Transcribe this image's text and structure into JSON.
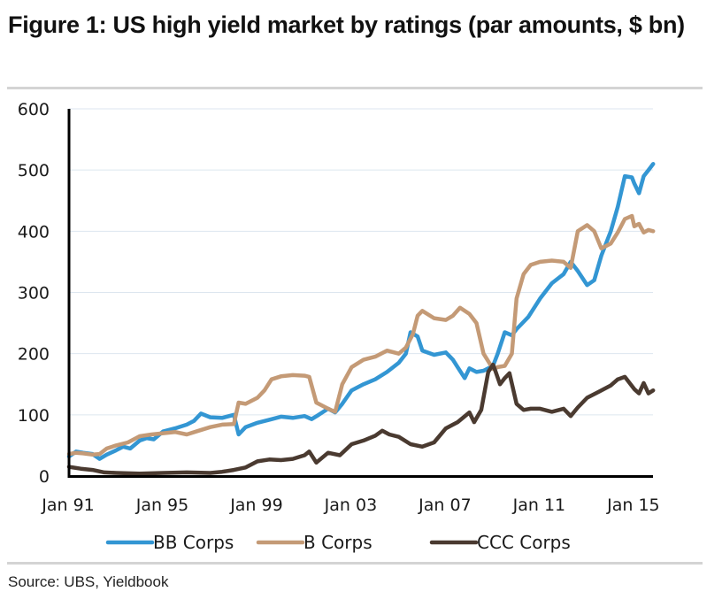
{
  "title": "Figure 1: US high yield market by ratings (par amounts, $ bn)",
  "source": "Source:  UBS, Yieldbook",
  "chart_data": {
    "type": "line",
    "title": "Figure 1: US high yield market by ratings (par amounts, $ bn)",
    "xlabel": "",
    "ylabel": "",
    "ylim": [
      0,
      600
    ],
    "xlim": [
      1991.0,
      2015.8
    ],
    "yticks": [
      0,
      100,
      200,
      300,
      400,
      500,
      600
    ],
    "ytick_labels": [
      "0",
      "100",
      "200",
      "300",
      "400",
      "500",
      "600"
    ],
    "xticks": [
      1991,
      1995,
      1999,
      2003,
      2007,
      2011,
      2015
    ],
    "xtick_labels": [
      "Jan 91",
      "Jan 95",
      "Jan 99",
      "Jan 03",
      "Jan 07",
      "Jan 11",
      "Jan 15"
    ],
    "grid": "horizontal",
    "legend_position": "bottom",
    "series": [
      {
        "name": "BB Corps",
        "color": "#3396d3",
        "x": [
          1991.0,
          1991.3,
          1991.6,
          1992.0,
          1992.3,
          1992.6,
          1993.0,
          1993.3,
          1993.6,
          1994.0,
          1994.3,
          1994.6,
          1995.0,
          1995.5,
          1996.0,
          1996.3,
          1996.6,
          1997.0,
          1997.5,
          1998.0,
          1998.2,
          1998.5,
          1999.0,
          1999.5,
          2000.0,
          2000.5,
          2001.0,
          2001.3,
          2001.6,
          2002.0,
          2002.3,
          2002.6,
          2003.0,
          2003.5,
          2004.0,
          2004.5,
          2005.0,
          2005.3,
          2005.5,
          2005.8,
          2006.0,
          2006.5,
          2007.0,
          2007.3,
          2007.5,
          2007.8,
          2008.0,
          2008.3,
          2008.6,
          2009.0,
          2009.2,
          2009.5,
          2009.8,
          2010.0,
          2010.5,
          2011.0,
          2011.5,
          2012.0,
          2012.3,
          2012.6,
          2013.0,
          2013.3,
          2013.6,
          2014.0,
          2014.3,
          2014.6,
          2014.9,
          2015.0,
          2015.2,
          2015.4,
          2015.6,
          2015.8
        ],
        "values": [
          32,
          40,
          38,
          36,
          28,
          35,
          42,
          48,
          45,
          58,
          62,
          60,
          73,
          78,
          84,
          90,
          102,
          96,
          95,
          100,
          68,
          80,
          87,
          92,
          97,
          95,
          98,
          93,
          100,
          110,
          104,
          118,
          140,
          150,
          158,
          170,
          185,
          200,
          235,
          228,
          205,
          198,
          202,
          190,
          178,
          160,
          176,
          170,
          172,
          180,
          200,
          235,
          230,
          240,
          260,
          290,
          315,
          330,
          350,
          335,
          312,
          320,
          360,
          400,
          440,
          490,
          488,
          478,
          462,
          490,
          500,
          510
        ]
      },
      {
        "name": "B Corps",
        "color": "#c49a76",
        "x": [
          1991.0,
          1991.3,
          1991.6,
          1992.0,
          1992.3,
          1992.6,
          1993.0,
          1993.5,
          1994.0,
          1994.5,
          1995.0,
          1995.5,
          1996.0,
          1996.5,
          1997.0,
          1997.5,
          1998.0,
          1998.2,
          1998.5,
          1999.0,
          1999.3,
          1999.6,
          2000.0,
          2000.5,
          2001.0,
          2001.2,
          2001.5,
          2002.0,
          2002.3,
          2002.6,
          2003.0,
          2003.5,
          2004.0,
          2004.5,
          2005.0,
          2005.3,
          2005.6,
          2005.8,
          2006.0,
          2006.5,
          2007.0,
          2007.3,
          2007.6,
          2008.0,
          2008.3,
          2008.6,
          2009.0,
          2009.2,
          2009.5,
          2009.8,
          2010.0,
          2010.3,
          2010.6,
          2011.0,
          2011.5,
          2012.0,
          2012.3,
          2012.6,
          2013.0,
          2013.3,
          2013.6,
          2014.0,
          2014.3,
          2014.6,
          2014.9,
          2015.0,
          2015.2,
          2015.4,
          2015.6,
          2015.8
        ],
        "values": [
          36,
          38,
          37,
          35,
          36,
          45,
          50,
          55,
          65,
          68,
          70,
          72,
          68,
          74,
          80,
          84,
          85,
          120,
          118,
          128,
          140,
          158,
          163,
          165,
          164,
          162,
          120,
          110,
          105,
          150,
          178,
          190,
          195,
          205,
          200,
          210,
          232,
          262,
          270,
          258,
          255,
          262,
          275,
          265,
          250,
          200,
          175,
          178,
          180,
          200,
          290,
          330,
          345,
          350,
          352,
          350,
          340,
          400,
          410,
          400,
          372,
          380,
          398,
          420,
          425,
          408,
          412,
          398,
          402,
          400
        ]
      },
      {
        "name": "CCC Corps",
        "color": "#4a3a30",
        "x": [
          1991.0,
          1991.5,
          1992.0,
          1992.5,
          1993.0,
          1994.0,
          1995.0,
          1996.0,
          1997.0,
          1997.5,
          1998.0,
          1998.5,
          1999.0,
          1999.5,
          2000.0,
          2000.5,
          2001.0,
          2001.2,
          2001.5,
          2002.0,
          2002.5,
          2003.0,
          2003.5,
          2004.0,
          2004.3,
          2004.6,
          2005.0,
          2005.5,
          2006.0,
          2006.5,
          2007.0,
          2007.5,
          2008.0,
          2008.2,
          2008.5,
          2008.8,
          2009.0,
          2009.1,
          2009.3,
          2009.5,
          2009.7,
          2010.0,
          2010.3,
          2010.6,
          2011.0,
          2011.5,
          2012.0,
          2012.3,
          2012.6,
          2013.0,
          2013.5,
          2014.0,
          2014.3,
          2014.6,
          2015.0,
          2015.2,
          2015.4,
          2015.6,
          2015.8
        ],
        "values": [
          15,
          12,
          10,
          6,
          5,
          4,
          5,
          6,
          5,
          7,
          10,
          14,
          24,
          27,
          26,
          28,
          34,
          40,
          22,
          38,
          34,
          52,
          58,
          66,
          74,
          68,
          64,
          52,
          48,
          55,
          78,
          88,
          104,
          88,
          108,
          170,
          182,
          172,
          150,
          160,
          168,
          118,
          108,
          110,
          110,
          105,
          110,
          98,
          112,
          128,
          138,
          148,
          158,
          162,
          142,
          135,
          152,
          135,
          140
        ]
      }
    ]
  }
}
